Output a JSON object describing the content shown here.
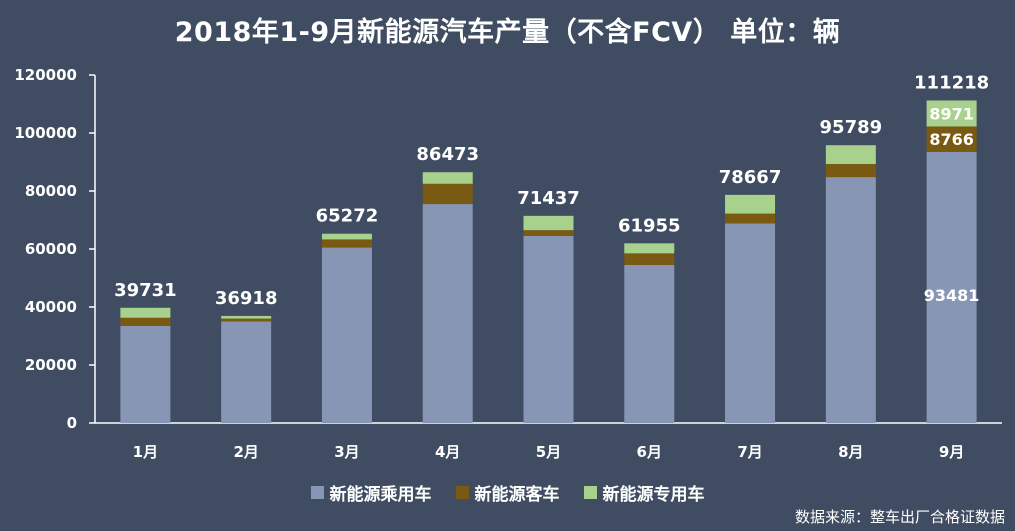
{
  "title": "2018年1-9月新能源汽车产量（不含FCV） 单位：辆",
  "source": "数据来源：整车出厂合格证数据",
  "colors": {
    "background": "#3f4c61",
    "passenger": "#8796b5",
    "bus": "#7a5a12",
    "special": "#a9d18e",
    "axis": "#ffffff",
    "grid": "#53607a"
  },
  "chart_data": {
    "type": "bar",
    "stacked": true,
    "title": "2018年1-9月新能源汽车产量（不含FCV） 单位：辆",
    "categories": [
      "1月",
      "2月",
      "3月",
      "4月",
      "5月",
      "6月",
      "7月",
      "8月",
      "9月"
    ],
    "ylim": [
      0,
      120000
    ],
    "yticks": [
      0,
      20000,
      40000,
      60000,
      80000,
      100000,
      120000
    ],
    "series": [
      {
        "name": "新能源乘用车",
        "color": "#8796b5",
        "values": [
          33500,
          35000,
          60500,
          75500,
          64500,
          54500,
          68800,
          84800,
          93481
        ]
      },
      {
        "name": "新能源客车",
        "color": "#7a5a12",
        "values": [
          2800,
          1000,
          2800,
          7000,
          2000,
          4000,
          3400,
          4500,
          8766
        ]
      },
      {
        "name": "新能源专用车",
        "color": "#a9d18e",
        "values": [
          3431,
          918,
          1972,
          3973,
          4937,
          3455,
          6467,
          6489,
          8971
        ]
      }
    ],
    "totals": [
      39731,
      36918,
      65272,
      86473,
      71437,
      61955,
      78667,
      95789,
      111218
    ],
    "segment_labels": [
      {
        "category": "9月",
        "series": "新能源乘用车",
        "text": "93481"
      },
      {
        "category": "9月",
        "series": "新能源客车",
        "text": "8766"
      },
      {
        "category": "9月",
        "series": "新能源专用车",
        "text": "8971"
      }
    ],
    "legend": "bottom",
    "grid": false
  }
}
